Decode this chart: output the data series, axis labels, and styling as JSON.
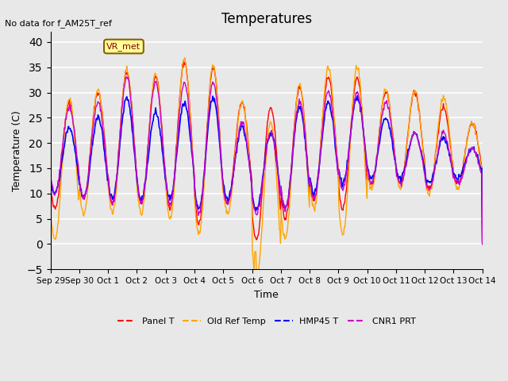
{
  "title": "Temperatures",
  "xlabel": "Time",
  "ylabel": "Temperature (C)",
  "ylim": [
    -5,
    42
  ],
  "yticks": [
    -5,
    0,
    5,
    10,
    15,
    20,
    25,
    30,
    35,
    40
  ],
  "annotation_text": "No data for f_AM25T_ref",
  "box_label": "VR_met",
  "colors": {
    "panel_t": "#FF0000",
    "old_ref_temp": "#FFA500",
    "hmp45_t": "#0000FF",
    "cnr1_prt": "#CC00CC"
  },
  "legend_labels": [
    "Panel T",
    "Old Ref Temp",
    "HMP45 T",
    "CNR1 PRT"
  ],
  "x_tick_labels": [
    "Sep 29",
    "Sep 30",
    "Oct 1",
    "Oct 2",
    "Oct 3",
    "Oct 4",
    "Oct 5",
    "Oct 6",
    "Oct 7",
    "Oct 8",
    "Oct 9",
    "Oct 10",
    "Oct 11",
    "Oct 12",
    "Oct 13",
    "Oct 14"
  ],
  "background_color": "#E8E8E8",
  "plot_bg_color": "#E8E8E8",
  "grid_color": "#FFFFFF",
  "n_days": 15,
  "points_per_day": 48,
  "start_day": 0,
  "daily_peaks": [
    28,
    30,
    34,
    33,
    36,
    35,
    28,
    27,
    31,
    33,
    33,
    30,
    30,
    27,
    24
  ],
  "daily_troughs": [
    7,
    9,
    8,
    8,
    7,
    4,
    8,
    1,
    5,
    9,
    7,
    12,
    12,
    11,
    12
  ],
  "old_ref_peak_offset": [
    1,
    0.5,
    0.5,
    0.5,
    0.5,
    0.5,
    0,
    0,
    0.5,
    2,
    2,
    0.5,
    0.5,
    2,
    0
  ],
  "old_ref_trough_offset": [
    -6,
    -3,
    -2,
    -2,
    -2,
    -2,
    -2,
    -5,
    -4,
    -2,
    -5,
    -1,
    -1,
    -1,
    -1
  ],
  "hmp45_peak_offset": [
    -5,
    -5,
    -5,
    -7,
    -8,
    -6,
    -5,
    -5,
    -4,
    -5,
    -4,
    -5,
    -8,
    -6,
    -5
  ],
  "hmp45_trough_offset": [
    3,
    0,
    1,
    1,
    2,
    3,
    1,
    6,
    2,
    1,
    5,
    1,
    1,
    1,
    1
  ],
  "cnr1_peak_offset": [
    -1,
    -2,
    -1,
    -1,
    -4,
    -3,
    -4,
    -5,
    -3,
    -3,
    -3,
    -2,
    -8,
    -5,
    -5
  ],
  "cnr1_trough_offset": [
    3,
    0,
    0,
    0,
    1,
    2,
    0,
    5,
    2,
    0,
    4,
    0,
    0,
    0,
    0
  ]
}
